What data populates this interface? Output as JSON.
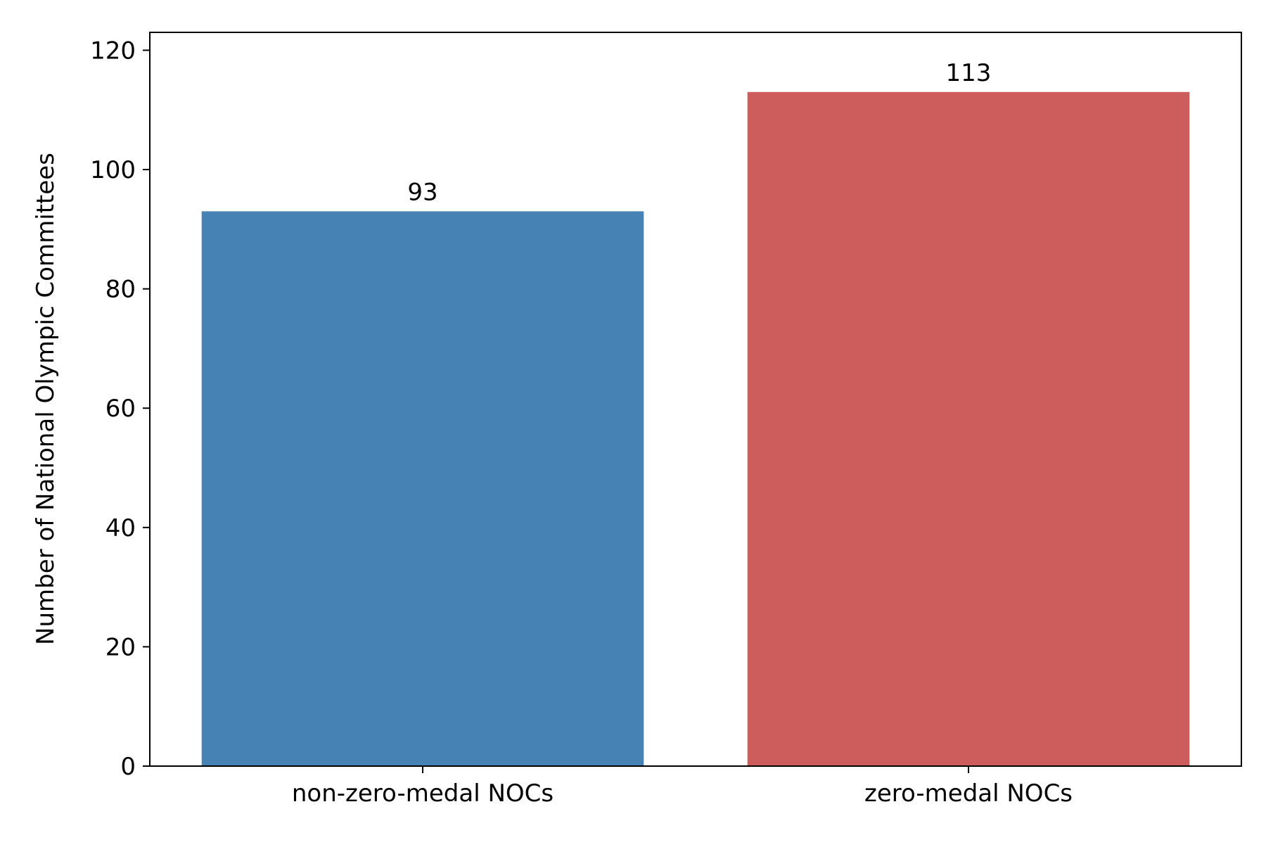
{
  "chart_data": {
    "type": "bar",
    "title": "",
    "xlabel": "",
    "ylabel": "Number of National Olympic Committees",
    "categories": [
      "non-zero-medal NOCs",
      "zero-medal NOCs"
    ],
    "values": [
      93,
      113
    ],
    "data_labels": [
      "93",
      "113"
    ],
    "colors": [
      "#4682b4",
      "#cd5c5c"
    ],
    "ylim": [
      0,
      123
    ],
    "yticks": [
      0,
      20,
      40,
      60,
      80,
      100,
      120
    ],
    "grid": false,
    "legend": "none"
  }
}
